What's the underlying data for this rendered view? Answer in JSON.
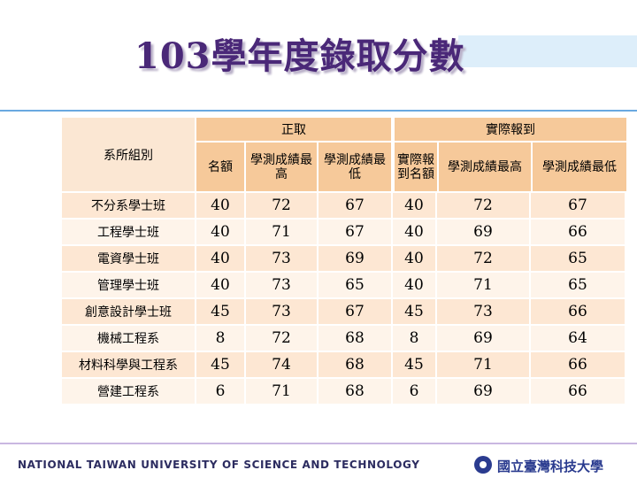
{
  "title": "103學年度錄取分數",
  "table": {
    "group_headers": [
      "正取",
      "實際報到"
    ],
    "dept_header": "系所組別",
    "column_headers": [
      "名額",
      "學測成績最高",
      "學測成績最低",
      "實際報到名額",
      "學測成績最高",
      "學測成績最低"
    ],
    "rows": [
      {
        "dept": "不分系學士班",
        "values": [
          "40",
          "72",
          "67",
          "40",
          "72",
          "67"
        ]
      },
      {
        "dept": "工程學士班",
        "values": [
          "40",
          "71",
          "67",
          "40",
          "69",
          "66"
        ]
      },
      {
        "dept": "電資學士班",
        "values": [
          "40",
          "73",
          "69",
          "40",
          "72",
          "65"
        ]
      },
      {
        "dept": "管理學士班",
        "values": [
          "40",
          "73",
          "65",
          "40",
          "71",
          "65"
        ]
      },
      {
        "dept": "創意設計學士班",
        "values": [
          "45",
          "73",
          "67",
          "45",
          "73",
          "66"
        ]
      },
      {
        "dept": "機械工程系",
        "values": [
          "8",
          "72",
          "68",
          "8",
          "69",
          "64"
        ]
      },
      {
        "dept": "材料科學與工程系",
        "values": [
          "45",
          "74",
          "68",
          "45",
          "71",
          "66"
        ]
      },
      {
        "dept": "營建工程系",
        "values": [
          "6",
          "71",
          "68",
          "6",
          "69",
          "66"
        ]
      }
    ]
  },
  "footer": {
    "university_en": "NATIONAL TAIWAN UNIVERSITY OF SCIENCE AND TECHNOLOGY",
    "university_cn": "國立臺灣科技大學",
    "logo_icon": "university-seal-icon"
  },
  "colors": {
    "title": "#4a2878",
    "header_fill": "#f6c99a",
    "row_fill_a": "#fde7d3",
    "row_fill_b": "#fef4ea",
    "accent": "#6aa9e0"
  }
}
